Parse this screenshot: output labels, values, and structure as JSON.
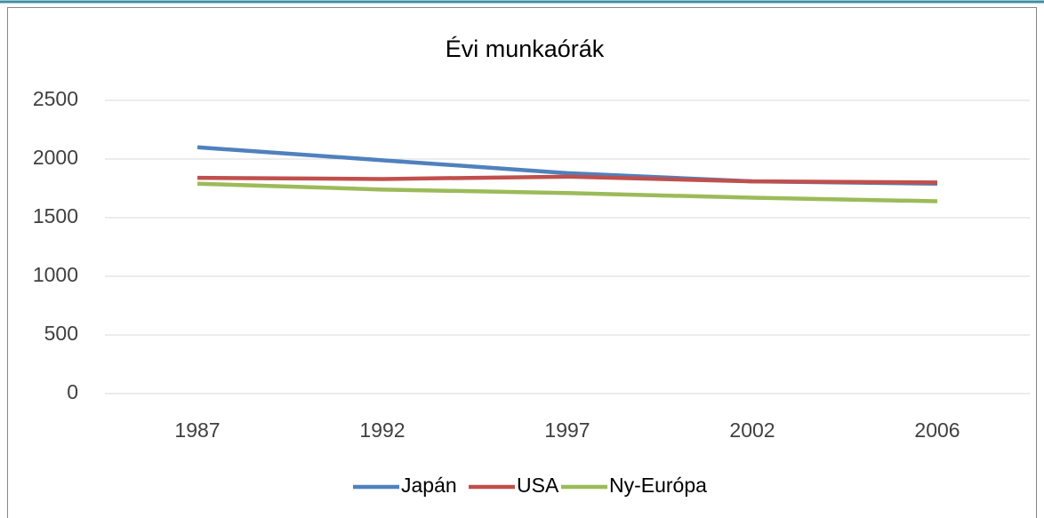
{
  "chart_data": {
    "type": "line",
    "title": "Évi munkaórák",
    "categories": [
      "1987",
      "1992",
      "1997",
      "2002",
      "2006"
    ],
    "series": [
      {
        "name": "Japán",
        "color": "#4f81bd",
        "values": [
          2100,
          1990,
          1880,
          1810,
          1790
        ]
      },
      {
        "name": "USA",
        "color": "#c0504d",
        "values": [
          1840,
          1830,
          1850,
          1810,
          1800
        ]
      },
      {
        "name": "Ny-Európa",
        "color": "#9bbb59",
        "values": [
          1790,
          1740,
          1710,
          1670,
          1640
        ]
      }
    ],
    "ylim": [
      0,
      2500
    ],
    "yticks": [
      0,
      500,
      1000,
      1500,
      2000,
      2500
    ],
    "grid": true,
    "legend": "bottom"
  }
}
